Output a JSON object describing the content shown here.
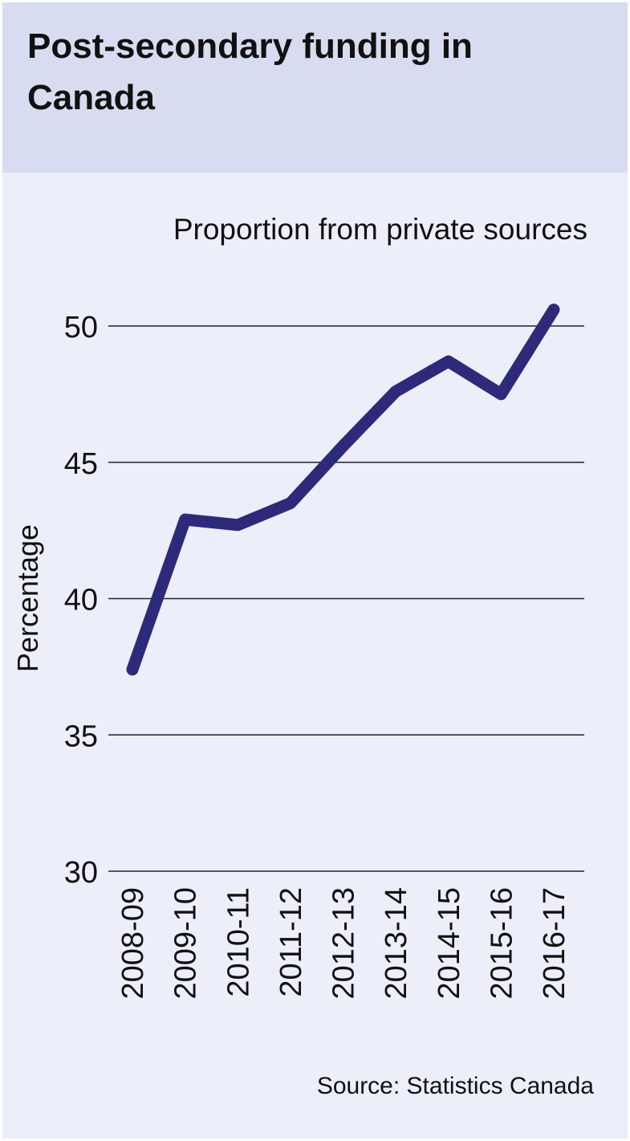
{
  "chart_data": {
    "type": "line",
    "title": "Post-secondary funding in Canada",
    "subtitle": "Proportion from private sources",
    "y_label": "Percentage",
    "source": "Source: Statistics Canada",
    "categories": [
      "2008-09",
      "2009-10",
      "2010-11",
      "2011-12",
      "2012-13",
      "2013-14",
      "2014-15",
      "2015-16",
      "2016-17"
    ],
    "series": [
      {
        "name": "Proportion from private sources",
        "color": "#2e2a7a",
        "values": [
          37.4,
          42.9,
          42.7,
          43.5,
          45.6,
          47.6,
          48.7,
          47.5,
          50.6
        ]
      }
    ],
    "ylim": [
      30,
      50
    ],
    "yticks": [
      30,
      35,
      40,
      45,
      50
    ],
    "grid": true
  }
}
